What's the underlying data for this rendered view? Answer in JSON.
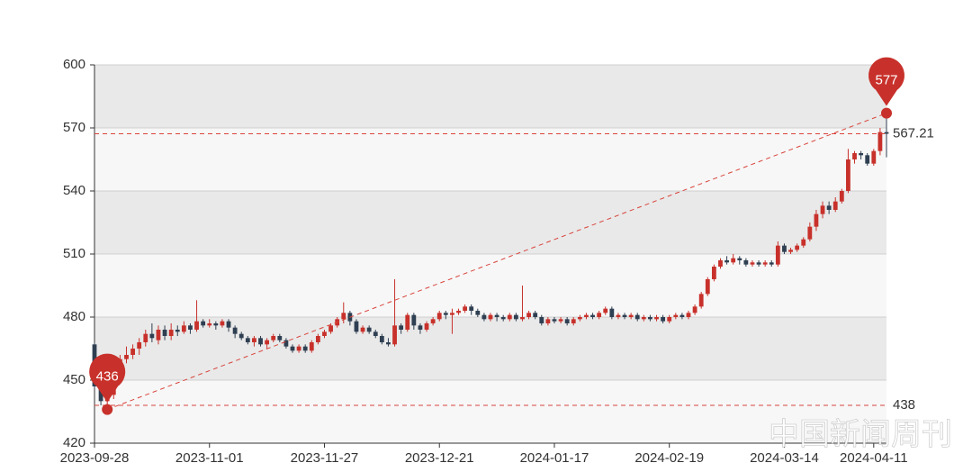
{
  "chart_data": {
    "type": "candlestick",
    "watermark": "中国新闻周刊",
    "up_color": "#c8312b",
    "down_color": "#2f3f52",
    "ylim": [
      420,
      600
    ],
    "yticks": [
      420,
      450,
      480,
      510,
      540,
      570,
      600
    ],
    "grid": true,
    "categories": [
      "2023-09-28",
      null,
      null,
      null,
      null,
      null,
      null,
      null,
      null,
      null,
      null,
      null,
      null,
      null,
      null,
      null,
      null,
      null,
      "2023-11-01",
      null,
      null,
      null,
      null,
      null,
      null,
      null,
      null,
      null,
      null,
      null,
      null,
      null,
      null,
      null,
      null,
      null,
      "2023-11-27",
      null,
      null,
      null,
      null,
      null,
      null,
      null,
      null,
      null,
      null,
      null,
      null,
      null,
      null,
      null,
      null,
      null,
      "2023-12-21",
      null,
      null,
      null,
      null,
      null,
      null,
      null,
      null,
      null,
      null,
      null,
      null,
      null,
      null,
      null,
      null,
      null,
      "2024-01-17",
      null,
      null,
      null,
      null,
      null,
      null,
      null,
      null,
      null,
      null,
      null,
      null,
      null,
      null,
      null,
      null,
      null,
      "2024-02-19",
      null,
      null,
      null,
      null,
      null,
      null,
      null,
      null,
      null,
      null,
      null,
      null,
      null,
      null,
      null,
      null,
      null,
      "2024-03-14",
      null,
      null,
      null,
      null,
      null,
      null,
      null,
      null,
      null,
      null,
      null,
      null,
      null,
      "2024-04-11",
      null,
      null
    ],
    "ohlc": [
      [
        467,
        447,
        446,
        468
      ],
      [
        447,
        440,
        438,
        449
      ],
      [
        440,
        443,
        436,
        445
      ],
      [
        443,
        452,
        441,
        454
      ],
      [
        452,
        460,
        450,
        462
      ],
      [
        460,
        462,
        458,
        466
      ],
      [
        462,
        465,
        460,
        467
      ],
      [
        465,
        468,
        462,
        470
      ],
      [
        468,
        472,
        466,
        474
      ],
      [
        472,
        470,
        468,
        477
      ],
      [
        469,
        474,
        467,
        476
      ],
      [
        474,
        471,
        469,
        476
      ],
      [
        471,
        474,
        469,
        477
      ],
      [
        474,
        473,
        471,
        476
      ],
      [
        473,
        476,
        472,
        478
      ],
      [
        476,
        474,
        472,
        477
      ],
      [
        474,
        478,
        473,
        488
      ],
      [
        478,
        476,
        475,
        479
      ],
      [
        476,
        477,
        475,
        479
      ],
      [
        477,
        476,
        474,
        478
      ],
      [
        476,
        478,
        475,
        479
      ],
      [
        478,
        475,
        473,
        479
      ],
      [
        475,
        472,
        470,
        476
      ],
      [
        472,
        470,
        469,
        473
      ],
      [
        470,
        468,
        467,
        471
      ],
      [
        468,
        470,
        466,
        471
      ],
      [
        470,
        467,
        466,
        471
      ],
      [
        467,
        469,
        465,
        470
      ],
      [
        469,
        471,
        468,
        472
      ],
      [
        471,
        469,
        468,
        472
      ],
      [
        469,
        466,
        465,
        470
      ],
      [
        466,
        464,
        463,
        467
      ],
      [
        464,
        466,
        463,
        467
      ],
      [
        466,
        464,
        463,
        467
      ],
      [
        464,
        468,
        463,
        469
      ],
      [
        468,
        471,
        467,
        472
      ],
      [
        471,
        473,
        470,
        474
      ],
      [
        473,
        476,
        472,
        477
      ],
      [
        476,
        479,
        475,
        480
      ],
      [
        479,
        482,
        477,
        487
      ],
      [
        482,
        478,
        476,
        483
      ],
      [
        478,
        473,
        472,
        479
      ],
      [
        473,
        475,
        472,
        476
      ],
      [
        475,
        473,
        472,
        476
      ],
      [
        473,
        471,
        470,
        474
      ],
      [
        471,
        468,
        467,
        472
      ],
      [
        468,
        467,
        466,
        470
      ],
      [
        467,
        476,
        466,
        498
      ],
      [
        476,
        474,
        472,
        477
      ],
      [
        474,
        481,
        473,
        482
      ],
      [
        481,
        476,
        474,
        482
      ],
      [
        476,
        474,
        472,
        477
      ],
      [
        474,
        477,
        473,
        478
      ],
      [
        477,
        479,
        476,
        480
      ],
      [
        479,
        482,
        478,
        483
      ],
      [
        482,
        481,
        479,
        483
      ],
      [
        481,
        482,
        472,
        484
      ],
      [
        482,
        483,
        481,
        484
      ],
      [
        483,
        485,
        482,
        486
      ],
      [
        485,
        483,
        481,
        486
      ],
      [
        483,
        481,
        480,
        484
      ],
      [
        481,
        479,
        478,
        482
      ],
      [
        479,
        481,
        478,
        482
      ],
      [
        481,
        480,
        478,
        482
      ],
      [
        480,
        479,
        478,
        481
      ],
      [
        479,
        481,
        478,
        482
      ],
      [
        481,
        479,
        478,
        482
      ],
      [
        479,
        480,
        478,
        495
      ],
      [
        480,
        482,
        479,
        483
      ],
      [
        482,
        480,
        479,
        483
      ],
      [
        480,
        477,
        476,
        481
      ],
      [
        477,
        479,
        476,
        480
      ],
      [
        479,
        478,
        477,
        480
      ],
      [
        478,
        479,
        477,
        480
      ],
      [
        479,
        477,
        476,
        480
      ],
      [
        477,
        479,
        476,
        480
      ],
      [
        479,
        480,
        478,
        481
      ],
      [
        480,
        481,
        479,
        482
      ],
      [
        481,
        480,
        479,
        482
      ],
      [
        480,
        482,
        479,
        483
      ],
      [
        482,
        484,
        481,
        485
      ],
      [
        484,
        480,
        479,
        485
      ],
      [
        480,
        481,
        479,
        482
      ],
      [
        481,
        480,
        479,
        482
      ],
      [
        480,
        481,
        479,
        482
      ],
      [
        481,
        479,
        478,
        482
      ],
      [
        479,
        480,
        478,
        481
      ],
      [
        480,
        479,
        478,
        481
      ],
      [
        479,
        480,
        478,
        481
      ],
      [
        480,
        478,
        477,
        481
      ],
      [
        478,
        480,
        477,
        481
      ],
      [
        480,
        481,
        479,
        482
      ],
      [
        481,
        480,
        479,
        482
      ],
      [
        480,
        482,
        479,
        483
      ],
      [
        482,
        485,
        481,
        486
      ],
      [
        485,
        491,
        484,
        492
      ],
      [
        491,
        498,
        490,
        499
      ],
      [
        498,
        504,
        497,
        505
      ],
      [
        504,
        507,
        503,
        508
      ],
      [
        507,
        506,
        505,
        509
      ],
      [
        506,
        508,
        505,
        510
      ],
      [
        508,
        507,
        505,
        509
      ],
      [
        507,
        505,
        504,
        508
      ],
      [
        505,
        506,
        504,
        507
      ],
      [
        506,
        505,
        504,
        507
      ],
      [
        505,
        506,
        504,
        507
      ],
      [
        506,
        505,
        504,
        507
      ],
      [
        505,
        514,
        504,
        516
      ],
      [
        514,
        511,
        510,
        515
      ],
      [
        511,
        512,
        510,
        513
      ],
      [
        512,
        514,
        511,
        515
      ],
      [
        514,
        517,
        513,
        518
      ],
      [
        517,
        523,
        516,
        525
      ],
      [
        523,
        529,
        521,
        531
      ],
      [
        529,
        533,
        527,
        535
      ],
      [
        533,
        531,
        529,
        535
      ],
      [
        531,
        535,
        530,
        537
      ],
      [
        535,
        540,
        534,
        541
      ],
      [
        540,
        555,
        539,
        560
      ],
      [
        555,
        558,
        553,
        559
      ],
      [
        558,
        557,
        555,
        559
      ],
      [
        557,
        553,
        552,
        558
      ],
      [
        553,
        559,
        552,
        560
      ],
      [
        559,
        568,
        557,
        570
      ],
      [
        568,
        567.21,
        556,
        577
      ]
    ],
    "mark_points": [
      436,
      577
    ],
    "mark_lines": [
      567.21,
      438
    ]
  }
}
